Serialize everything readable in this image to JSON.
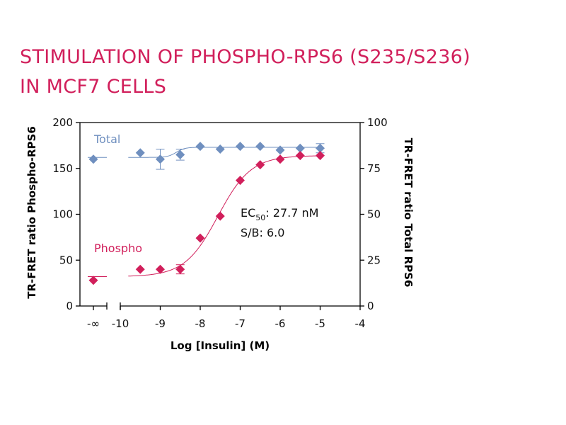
{
  "title_line1": "STIMULATION OF PHOSPHO-RPS6 (S235/S236)",
  "title_line2": "IN MCF7 CELLS",
  "chart_data": {
    "type": "scatter",
    "xlabel": "Log [Insulin] (M)",
    "ylabel_left": "TR-FRET ratio Phospho-RPS6",
    "ylabel_right": "TR-FRET ratio Total RPS6",
    "x_ticks": [
      "-∞",
      "-10",
      "-9",
      "-8",
      "-7",
      "-6",
      "-5",
      "-4"
    ],
    "y_left_ticks": [
      "0",
      "50",
      "100",
      "150",
      "200"
    ],
    "y_right_ticks": [
      "0",
      "25",
      "50",
      "75",
      "100"
    ],
    "xlim": [
      -10.3,
      -4
    ],
    "ylim_left": [
      0,
      200
    ],
    "ylim_right": [
      0,
      100
    ],
    "series": [
      {
        "name": "Total",
        "color": "#6f8fbf",
        "marker": "diamond",
        "axis": "right",
        "zero_dose_value": 80,
        "x": [
          -9.5,
          -9,
          -8.5,
          -8,
          -7.5,
          -7,
          -6.5,
          -6,
          -5.5,
          -5
        ],
        "y": [
          83.5,
          80,
          82.5,
          87,
          85.5,
          87,
          87,
          85,
          86,
          86
        ],
        "err": [
          0,
          5.5,
          3,
          0,
          0,
          0,
          0,
          0,
          0,
          2.5
        ],
        "fit": {
          "bottom": 81,
          "top": 86.5,
          "log_ec50": -8.6,
          "hill": 4
        }
      },
      {
        "name": "Phospho",
        "color": "#d11f5b",
        "marker": "diamond",
        "axis": "left",
        "zero_dose_value": 28,
        "x": [
          -9.5,
          -9,
          -8.5,
          -8,
          -7.5,
          -7,
          -6.5,
          -6,
          -5.5,
          -5
        ],
        "y": [
          40,
          40,
          40,
          74,
          98,
          137,
          154,
          160,
          164,
          164
        ],
        "err": [
          0,
          0,
          5,
          0,
          0,
          0,
          0,
          0,
          0,
          0
        ],
        "fit": {
          "bottom": 32,
          "top": 164,
          "log_ec50": -7.557,
          "hill": 1.05
        }
      }
    ],
    "annotation": {
      "ec50_main": "EC",
      "ec50_sub": "50",
      "ec50_value": ": 27.7 nM",
      "sb": "S/B: 6.0"
    }
  }
}
